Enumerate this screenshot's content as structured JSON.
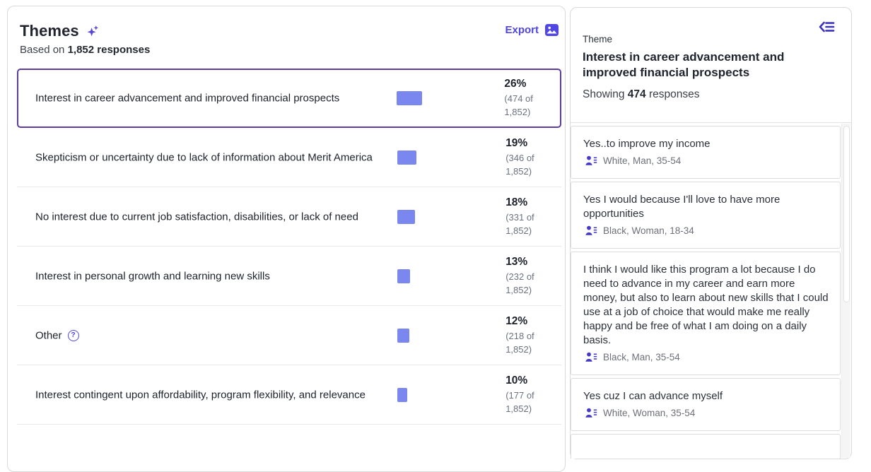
{
  "colors": {
    "accent": "#4f46e5",
    "icon_indigo": "#4338ca",
    "collapse_icon": "#3d33c2",
    "bar_fill": "#7a87ef",
    "selected_border": "#5e3b9c",
    "text_primary": "#20242e",
    "text_secondary": "#6b7280",
    "card_border": "#d9d9d9",
    "divider": "#e7e8ea"
  },
  "left_panel": {
    "title": "Themes",
    "title_icon": "sparkles-icon",
    "subtitle_prefix": "Based on ",
    "subtitle_bold": "1,852 responses",
    "export_label": "Export",
    "export_icon": "image-icon",
    "themes": [
      {
        "label": "Interest in career advancement and improved financial prospects",
        "percent": "26%",
        "count": "(474 of 1,852)",
        "value": 26,
        "selected": true,
        "help": false
      },
      {
        "label": "Skepticism or uncertainty due to lack of information about Merit America",
        "percent": "19%",
        "count": "(346 of 1,852)",
        "value": 19,
        "selected": false,
        "help": false
      },
      {
        "label": "No interest due to current job satisfaction, disabilities, or lack of need",
        "percent": "18%",
        "count": "(331 of 1,852)",
        "value": 18,
        "selected": false,
        "help": false
      },
      {
        "label": "Interest in personal growth and learning new skills",
        "percent": "13%",
        "count": "(232 of 1,852)",
        "value": 13,
        "selected": false,
        "help": false
      },
      {
        "label": "Other",
        "percent": "12%",
        "count": "(218 of 1,852)",
        "value": 12,
        "selected": false,
        "help": true
      },
      {
        "label": "Interest contingent upon affordability, program flexibility, and relevance",
        "percent": "10%",
        "count": "(177 of 1,852)",
        "value": 10,
        "selected": false,
        "help": false
      }
    ]
  },
  "right_panel": {
    "collapse_icon": "collapse-panel-icon",
    "eyebrow": "Theme",
    "title": "Interest in career advancement and improved financial prospects",
    "showing_prefix": "Showing ",
    "showing_bold": "474",
    "showing_suffix": " responses",
    "respondent_icon": "person-details-icon",
    "responses": [
      {
        "text": "Yes..to improve my income",
        "demographic": "White, Man, 35-54"
      },
      {
        "text": "Yes I would because I'll love to have more opportunities",
        "demographic": "Black, Woman, 18-34"
      },
      {
        "text": "I think I would like this program a lot because I do need to advance in my career and earn more money, but also to learn about new skills that I could use at a job of choice that would make me really happy and be free of what I am doing on a daily basis.",
        "demographic": "Black, Man, 35-54"
      },
      {
        "text": "Yes cuz I can advance myself",
        "demographic": "White, Woman, 35-54"
      }
    ]
  },
  "chart_data": {
    "type": "bar",
    "title": "Themes",
    "subtitle": "Based on 1,852 responses",
    "categories": [
      "Interest in career advancement and improved financial prospects",
      "Skepticism or uncertainty due to lack of information about Merit America",
      "No interest due to current job satisfaction, disabilities, or lack of need",
      "Interest in personal growth and learning new skills",
      "Other",
      "Interest contingent upon affordability, program flexibility, and relevance"
    ],
    "values": [
      26,
      19,
      18,
      13,
      12,
      10
    ],
    "counts": [
      474,
      346,
      331,
      232,
      218,
      177
    ],
    "total_responses": 1852,
    "unit": "percent",
    "orientation": "horizontal",
    "xlim": [
      0,
      100
    ],
    "grid": false,
    "legend": false
  }
}
